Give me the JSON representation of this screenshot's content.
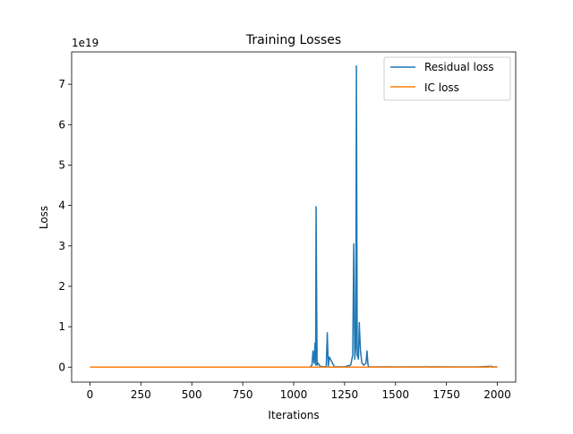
{
  "chart_data": {
    "type": "line",
    "title": "Training Losses",
    "xlabel": "Iterations",
    "ylabel": "Loss",
    "y_offset_label": "1e19",
    "xlim": [
      -90,
      2090
    ],
    "ylim": [
      -0.37,
      7.8
    ],
    "xticks": [
      0,
      250,
      500,
      750,
      1000,
      1250,
      1500,
      1750,
      2000
    ],
    "xtick_labels": [
      "0",
      "250",
      "500",
      "750",
      "1000",
      "1250",
      "1500",
      "1750",
      "2000"
    ],
    "yticks": [
      0,
      1,
      2,
      3,
      4,
      5,
      6,
      7
    ],
    "ytick_labels": [
      "0",
      "1",
      "2",
      "3",
      "4",
      "5",
      "6",
      "7"
    ],
    "grid": false,
    "legend_placement": "top-right",
    "series": [
      {
        "name": "Residual loss",
        "color": "#1f77b4",
        "x": [
          0,
          1080,
          1090,
          1095,
          1100,
          1105,
          1108,
          1110,
          1115,
          1120,
          1130,
          1150,
          1160,
          1165,
          1170,
          1175,
          1200,
          1250,
          1280,
          1290,
          1295,
          1300,
          1305,
          1308,
          1312,
          1318,
          1322,
          1328,
          1335,
          1345,
          1355,
          1360,
          1365,
          1370,
          1400,
          1450,
          1500,
          1700,
          1900,
          1970,
          1980,
          2000
        ],
        "y": [
          0,
          0,
          0.05,
          0.4,
          0.1,
          0.6,
          0.05,
          3.97,
          0.05,
          0.1,
          0.02,
          0.01,
          0.02,
          0.85,
          0.02,
          0.25,
          0.01,
          0.01,
          0.05,
          0.3,
          3.05,
          0.2,
          0.5,
          7.45,
          0.3,
          0.2,
          1.1,
          0.4,
          0.1,
          0.05,
          0.1,
          0.4,
          0.05,
          0.01,
          0.005,
          0.01,
          0.005,
          0.01,
          0.005,
          0.02,
          0.005,
          0.005
        ]
      },
      {
        "name": "IC loss",
        "color": "#ff7f0e",
        "x": [
          0,
          500,
          1000,
          1500,
          1640,
          1645,
          1650,
          1960,
          1965,
          1970,
          2000
        ],
        "y": [
          0,
          0,
          0,
          0,
          0,
          0.02,
          0,
          0,
          0.03,
          0,
          0
        ]
      }
    ]
  }
}
